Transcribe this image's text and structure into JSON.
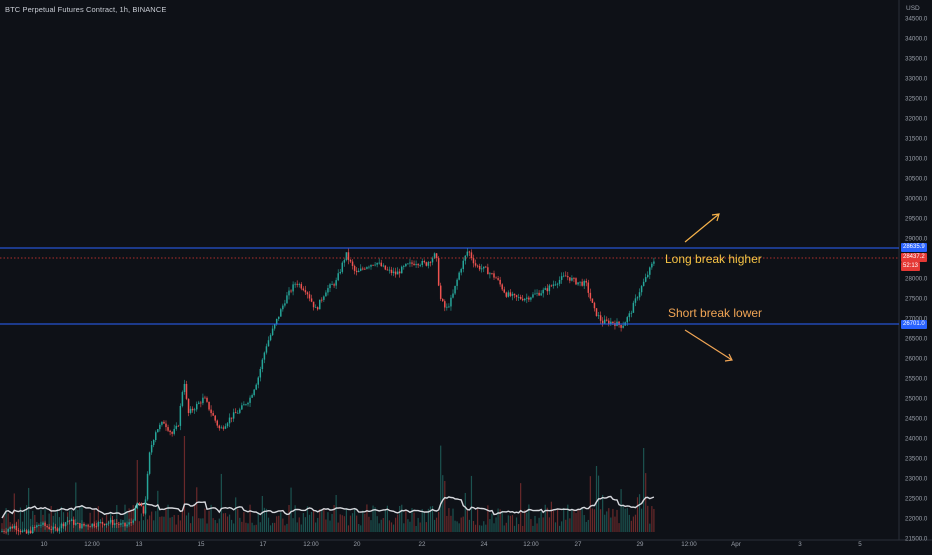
{
  "header": {
    "title": "BTC Perpetual Futures Contract, 1h, BINANCE",
    "currency": "USD"
  },
  "y_axis_labels": [
    "34500.0",
    "34000.0",
    "33500.0",
    "33000.0",
    "32500.0",
    "32000.0",
    "31500.0",
    "31000.0",
    "30500.0",
    "30000.0",
    "29500.0",
    "29000.0",
    "28500.0",
    "28000.0",
    "27500.0",
    "27000.0",
    "26500.0",
    "26000.0",
    "25500.0",
    "25000.0",
    "24500.0",
    "24000.0",
    "23500.0",
    "23000.0",
    "22500.0",
    "22000.0",
    "21500.0"
  ],
  "x_axis_labels": [
    "10",
    "12:00",
    "13",
    "15",
    "17",
    "12:00",
    "20",
    "22",
    "24",
    "12:00",
    "27",
    "29",
    "12:00",
    "Apr",
    "3",
    "5"
  ],
  "price_tags": {
    "resistance": "28635.9",
    "last_price": "28437.2",
    "countdown": "52:13",
    "support": "26701.0"
  },
  "annotations": {
    "long_break": "Long break higher",
    "short_break": "Short break lower"
  },
  "colors": {
    "background": "#0e1117",
    "up_candle": "#26a69a",
    "down_candle": "#ef5350",
    "level_line": "#2962ff",
    "arrow": "#f6b24a"
  },
  "chart_data": {
    "type": "candlestick",
    "title": "BTC Perpetual Futures Contract, 1h, BINANCE",
    "ylabel": "USD",
    "ylim": [
      21450,
      34600
    ],
    "horizontal_levels": [
      28635.9,
      26701.0
    ],
    "last_price": 28437.2,
    "price_path": [
      [
        0,
        21650
      ],
      [
        14,
        21800
      ],
      [
        26,
        21600
      ],
      [
        40,
        21850
      ],
      [
        55,
        21700
      ],
      [
        68,
        21950
      ],
      [
        80,
        21800
      ],
      [
        95,
        21850
      ],
      [
        110,
        21900
      ],
      [
        125,
        21800
      ],
      [
        132,
        21900
      ],
      [
        138,
        22400
      ],
      [
        144,
        22100
      ],
      [
        150,
        23700
      ],
      [
        156,
        24200
      ],
      [
        164,
        24400
      ],
      [
        172,
        24100
      ],
      [
        178,
        24300
      ],
      [
        184,
        25500
      ],
      [
        188,
        24600
      ],
      [
        196,
        24800
      ],
      [
        204,
        25000
      ],
      [
        212,
        24600
      ],
      [
        220,
        24200
      ],
      [
        230,
        24500
      ],
      [
        240,
        24700
      ],
      [
        250,
        25000
      ],
      [
        258,
        25500
      ],
      [
        266,
        26300
      ],
      [
        276,
        26900
      ],
      [
        286,
        27500
      ],
      [
        296,
        27900
      ],
      [
        306,
        27700
      ],
      [
        316,
        27200
      ],
      [
        326,
        27700
      ],
      [
        336,
        27900
      ],
      [
        346,
        28600
      ],
      [
        356,
        28100
      ],
      [
        366,
        28300
      ],
      [
        376,
        28400
      ],
      [
        386,
        28200
      ],
      [
        396,
        28100
      ],
      [
        406,
        28300
      ],
      [
        416,
        28400
      ],
      [
        426,
        28350
      ],
      [
        436,
        28600
      ],
      [
        440,
        27500
      ],
      [
        446,
        27200
      ],
      [
        452,
        27500
      ],
      [
        460,
        28200
      ],
      [
        468,
        28700
      ],
      [
        476,
        28300
      ],
      [
        486,
        28200
      ],
      [
        496,
        28000
      ],
      [
        506,
        27600
      ],
      [
        516,
        27500
      ],
      [
        526,
        27500
      ],
      [
        536,
        27600
      ],
      [
        546,
        27700
      ],
      [
        556,
        27900
      ],
      [
        566,
        28050
      ],
      [
        576,
        27900
      ],
      [
        586,
        27850
      ],
      [
        594,
        27200
      ],
      [
        602,
        26900
      ],
      [
        612,
        26900
      ],
      [
        622,
        26800
      ],
      [
        630,
        27100
      ],
      [
        638,
        27600
      ],
      [
        646,
        28000
      ],
      [
        654,
        28437
      ]
    ],
    "volume_scale_max": 22800,
    "volume_spikes": [
      {
        "x": 441,
        "v": 0.72
      },
      {
        "x": 137,
        "v": 0.6
      },
      {
        "x": 184,
        "v": 0.8
      },
      {
        "x": 596,
        "v": 0.55
      },
      {
        "x": 643,
        "v": 0.7
      },
      {
        "x": 263,
        "v": 0.3
      }
    ]
  }
}
